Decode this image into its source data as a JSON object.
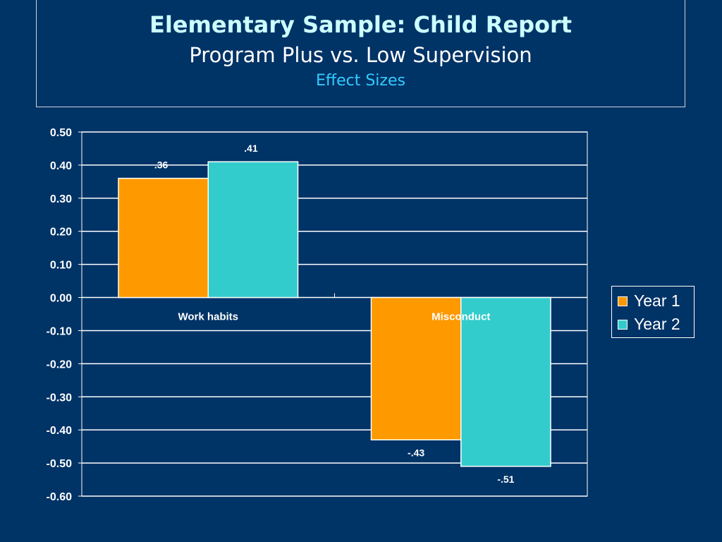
{
  "title": {
    "line1": "Elementary Sample: Child Report",
    "line2": "Program Plus vs. Low Supervision",
    "line3": "Effect Sizes"
  },
  "chart_data": {
    "type": "bar",
    "categories": [
      "Work habits",
      "Misconduct"
    ],
    "series": [
      {
        "name": "Year 1",
        "values": [
          0.36,
          -0.43
        ],
        "labels": [
          ".36",
          "-.43"
        ],
        "color": "#ff9900"
      },
      {
        "name": "Year 2",
        "values": [
          0.41,
          -0.51
        ],
        "labels": [
          ".41",
          "-.51"
        ],
        "color": "#33cccc"
      }
    ],
    "ylim": [
      -0.6,
      0.5
    ],
    "yticks": [
      0.5,
      0.4,
      0.3,
      0.2,
      0.1,
      0.0,
      -0.1,
      -0.2,
      -0.3,
      -0.4,
      -0.5,
      -0.6
    ],
    "ytick_labels": [
      "0.50",
      "0.40",
      "0.30",
      "0.20",
      "0.10",
      "0.00",
      "-0.10",
      "-0.20",
      "-0.30",
      "-0.40",
      "-0.50",
      "-0.60"
    ],
    "grid": true,
    "legend": "right",
    "plot_background": "#003366",
    "gridline_color": "#ffffff"
  }
}
